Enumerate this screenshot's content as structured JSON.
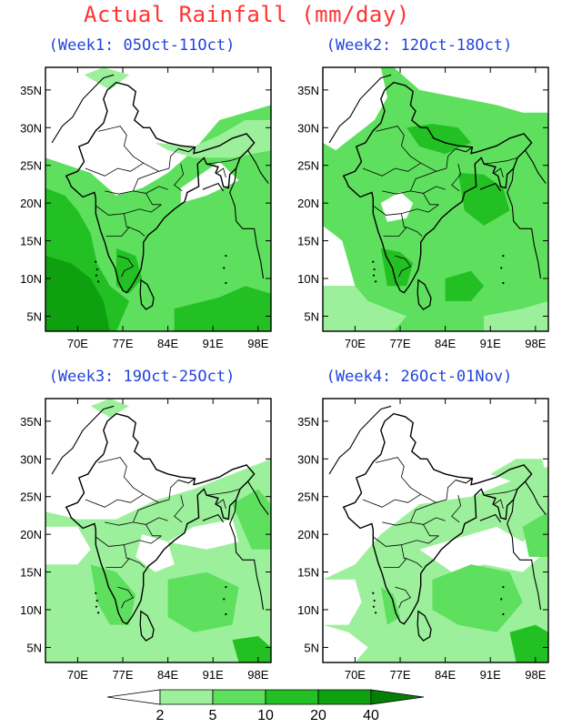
{
  "title": "Actual Rainfall (mm/day)",
  "panels": [
    {
      "id": "week1",
      "title": "(Week1: 05Oct-11Oct)"
    },
    {
      "id": "week2",
      "title": "(Week2: 12Oct-18Oct)"
    },
    {
      "id": "week3",
      "title": "(Week3: 19Oct-25Oct)"
    },
    {
      "id": "week4",
      "title": "(Week4: 26Oct-01Nov)"
    }
  ],
  "axes": {
    "y_ticks": [
      "35N",
      "30N",
      "25N",
      "20N",
      "15N",
      "10N",
      "5N"
    ],
    "x_ticks": [
      "70E",
      "77E",
      "84E",
      "91E",
      "98E"
    ]
  },
  "legend": {
    "labels": [
      "2",
      "5",
      "10",
      "20",
      "40"
    ],
    "colors": [
      "#ffffff",
      "#9cf09c",
      "#5ee05e",
      "#22c022",
      "#0ea00e",
      "#058005"
    ]
  }
}
